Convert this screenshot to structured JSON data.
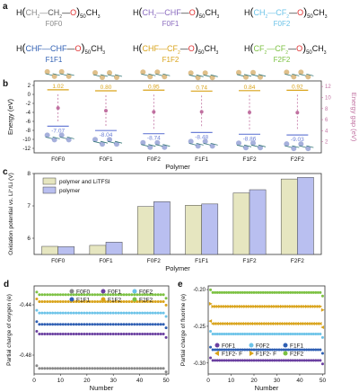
{
  "panel_a": {
    "letter": "a",
    "polymers": [
      {
        "name": "F0F0",
        "pre": "H",
        "seg1": "CH",
        "seg1sub": "2",
        "dash1": "—",
        "seg2": "CH",
        "seg2sub": "2",
        "dash2": "—",
        "o": "O",
        "n": "50",
        "tail": "CH",
        "tailsub": "3",
        "color": "#888888",
        "seg2color": "#555555"
      },
      {
        "name": "F0F1",
        "pre": "H",
        "seg1": "CH",
        "seg1sub": "2",
        "dash1": "—",
        "seg2": "CHF",
        "seg2sub": "",
        "dash2": "—",
        "o": "O",
        "n": "50",
        "tail": "CH",
        "tailsub": "3",
        "color": "#8a6bbf",
        "seg2color": "#8a6bbf"
      },
      {
        "name": "F0F2",
        "pre": "H",
        "seg1": "CH",
        "seg1sub": "2",
        "dash1": "—",
        "seg2": "CF",
        "seg2sub": "2",
        "dash2": "—",
        "o": "O",
        "n": "50",
        "tail": "CH",
        "tailsub": "3",
        "color": "#6cc3e8",
        "seg2color": "#6cc3e8"
      },
      {
        "name": "F1F1",
        "pre": "H",
        "seg1": "CHF",
        "seg1sub": "",
        "dash1": "—",
        "seg2": "CHF",
        "seg2sub": "",
        "dash2": "—",
        "o": "O",
        "n": "50",
        "tail": "CH",
        "tailsub": "3",
        "color": "#2f5fb3",
        "seg2color": "#2f5fb3"
      },
      {
        "name": "F1F2",
        "pre": "H",
        "seg1": "CHF",
        "seg1sub": "",
        "dash1": "—",
        "seg2": "CF",
        "seg2sub": "2",
        "dash2": "—",
        "o": "O",
        "n": "50",
        "tail": "CH",
        "tailsub": "3",
        "color": "#d9a31a",
        "seg2color": "#d9a31a"
      },
      {
        "name": "F2F2",
        "pre": "H",
        "seg1": "CF",
        "seg1sub": "2",
        "dash1": "—",
        "seg2": "CF",
        "seg2sub": "2",
        "dash2": "—",
        "o": "O",
        "n": "50",
        "tail": "CH",
        "tailsub": "3",
        "color": "#7cc142",
        "seg2color": "#7cc142"
      }
    ]
  },
  "colors": {
    "oxygen": "#e03030",
    "lumo": "#d9a31a",
    "homo": "#6b7fd6",
    "gap": "#c070a0",
    "barA": "#e6e6c0",
    "barB": "#b9bff0"
  },
  "chart_data": [
    {
      "panel": "b",
      "type": "scatter",
      "categories": [
        "F0F0",
        "F0F1",
        "F0F2",
        "F1F1",
        "F1F2",
        "F2F2"
      ],
      "xlabel": "Polymer",
      "ylabel": "Energy (eV)",
      "ylabel2": "Energy gap (eV)",
      "ylim": [
        -13,
        3
      ],
      "yticks": [
        2,
        0,
        -2,
        -4,
        -6,
        -8,
        -10,
        -12
      ],
      "ylim2": [
        0,
        13
      ],
      "yticks2": [
        12,
        10,
        8,
        6,
        4,
        2
      ],
      "lumo": [
        1.02,
        0.8,
        0.95,
        0.74,
        0.84,
        0.92
      ],
      "homo": [
        -7.07,
        -8.04,
        -8.74,
        -8.48,
        -8.86,
        -9.03
      ],
      "lumo_labels": [
        "1.02",
        "0.80",
        "0.95",
        "0.74",
        "0.84",
        "0.92"
      ],
      "homo_labels": [
        "-7.07",
        "-8.04",
        "-8.74",
        "-8.48",
        "-8.86",
        "-9.03"
      ]
    },
    {
      "panel": "c",
      "type": "bar",
      "categories": [
        "F0F0",
        "F0F1",
        "F0F2",
        "F1F1",
        "F1F2",
        "F2F2"
      ],
      "xlabel": "Polymer",
      "ylabel": "Oxidation potential vs. Li⁺/Li (V)",
      "ylim": [
        5.5,
        8
      ],
      "yticks": [
        6,
        7,
        8
      ],
      "series": [
        {
          "name": "polymer and LiTFSI",
          "values": [
            5.75,
            5.78,
            6.98,
            7.02,
            7.4,
            7.83
          ]
        },
        {
          "name": "polymer",
          "values": [
            5.74,
            5.88,
            7.13,
            7.06,
            7.5,
            7.88
          ]
        }
      ]
    },
    {
      "panel": "d",
      "type": "scatter",
      "xlabel": "Number",
      "ylabel": "Partial charge of oxygen (e)",
      "xlim": [
        0,
        51
      ],
      "xticks": [
        0,
        10,
        20,
        30,
        40,
        50
      ],
      "ylim": [
        -0.495,
        -0.425
      ],
      "yticks": [
        -0.44,
        -0.48
      ],
      "series": [
        {
          "name": "F0F0",
          "color": "#888888",
          "plateau": -0.4905
        },
        {
          "name": "F0F1",
          "color": "#6a3fa0",
          "plateau": -0.4632
        },
        {
          "name": "F0F2",
          "color": "#6cc3e8",
          "plateau": -0.4465
        },
        {
          "name": "F1F1",
          "color": "#2f5fb3",
          "plateau": -0.4555
        },
        {
          "name": "F1F2",
          "color": "#d9a31a",
          "plateau": -0.4375
        },
        {
          "name": "F2F2",
          "color": "#7cc142",
          "plateau": -0.432
        }
      ]
    },
    {
      "panel": "e",
      "type": "scatter",
      "xlabel": "Number",
      "ylabel": "Partial charge of fluorine (e)",
      "xlim": [
        0,
        51
      ],
      "xticks": [
        0,
        10,
        20,
        30,
        40,
        50
      ],
      "ylim": [
        -0.315,
        -0.195
      ],
      "yticks": [
        -0.2,
        -0.25,
        -0.3
      ],
      "series": [
        {
          "name": "F0F1",
          "color": "#6a3fa0",
          "plateau": -0.2965,
          "marker": "circle"
        },
        {
          "name": "F0F2",
          "color": "#6cc3e8",
          "plateau": -0.2605,
          "marker": "circle"
        },
        {
          "name": "F1F1",
          "color": "#2f5fb3",
          "plateau": -0.282,
          "marker": "circle"
        },
        {
          "name": "F1F2- F",
          "color": "#d9a31a",
          "plateau": -0.2465,
          "marker": "tri-left"
        },
        {
          "name": "F1F2- F",
          "color": "#d9a31a",
          "plateau": -0.223,
          "marker": "tri-right"
        },
        {
          "name": "F2F2",
          "color": "#7cc142",
          "plateau": -0.204,
          "marker": "circle"
        }
      ]
    }
  ]
}
